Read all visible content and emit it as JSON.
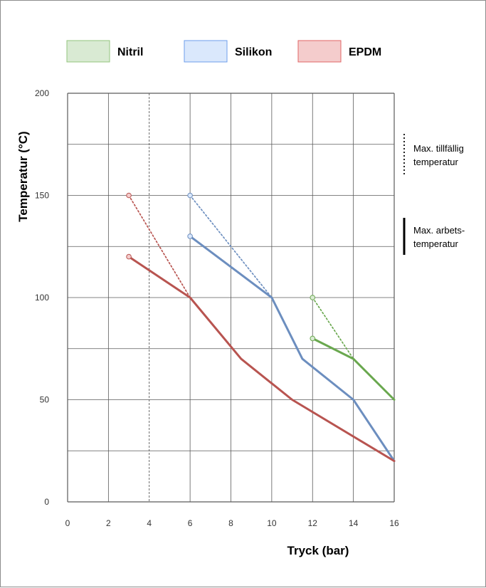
{
  "chart_data": {
    "type": "line",
    "title": "",
    "xlabel": "Tryck (bar)",
    "ylabel": "Temperatur (°C)",
    "xlim": [
      0,
      16
    ],
    "ylim": [
      0,
      200
    ],
    "x_ticks": [
      "0",
      "2",
      "4",
      "6",
      "8",
      "10",
      "12",
      "14",
      "16"
    ],
    "y_ticks": [
      "0",
      "50",
      "100",
      "150",
      "200"
    ],
    "grid": true,
    "legend_position": "top",
    "series": [
      {
        "name": "Nitril",
        "legend_fill": "#d9ead3",
        "legend_stroke": "#93c47d",
        "line_color": "#6aa84f",
        "marker_color": "#d9ead3",
        "work": [
          [
            12,
            80
          ],
          [
            14,
            70
          ],
          [
            16,
            50
          ]
        ],
        "temporary": [
          [
            12,
            100
          ],
          [
            14,
            70
          ]
        ]
      },
      {
        "name": "Silikon",
        "legend_fill": "#dae8fc",
        "legend_stroke": "#6d9eeb",
        "line_color": "#6c8ebf",
        "marker_color": "#dae8fc",
        "work": [
          [
            6,
            130
          ],
          [
            10,
            100
          ],
          [
            11.5,
            70
          ],
          [
            14,
            50
          ],
          [
            16,
            20
          ]
        ],
        "temporary": [
          [
            6,
            150
          ],
          [
            10,
            100
          ]
        ]
      },
      {
        "name": "EPDM",
        "legend_fill": "#f4cccc",
        "legend_stroke": "#e06666",
        "line_color": "#b85450",
        "marker_color": "#f4cccc",
        "work": [
          [
            3,
            120
          ],
          [
            6,
            100
          ],
          [
            8.5,
            70
          ],
          [
            11,
            50
          ],
          [
            16,
            20
          ]
        ],
        "temporary": [
          [
            3,
            150
          ],
          [
            6,
            100
          ]
        ]
      }
    ],
    "annotations": {
      "temporary_label": [
        "Max. tillfällig",
        "temperatur"
      ],
      "working_label": [
        "Max. arbets-",
        "temperatur"
      ]
    }
  }
}
